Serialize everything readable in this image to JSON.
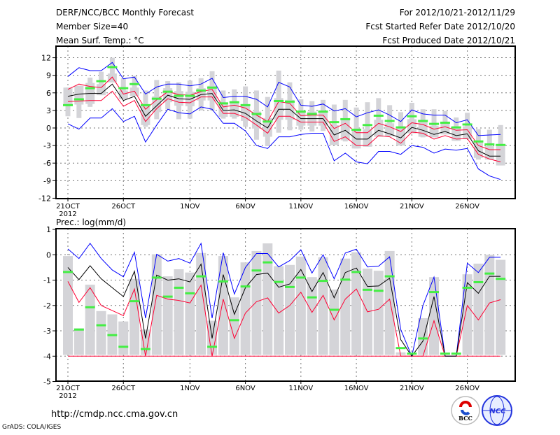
{
  "header": {
    "title": "DERF/NCC/BCC Monthly Forecast",
    "member_size": "Member Size=40",
    "variable": "Mean Surf. Temp.: °C",
    "period": "For 2012/10/21-2012/11/29",
    "start_date": "Fcst Started Refer Date 2012/10/20",
    "produced_date": "Fcst Produced Date 2012/10/21"
  },
  "footer": {
    "url": "http://cmdp.ncc.cma.gov.cn",
    "credit": "GrADS: COLA/IGES",
    "logo_bcc": "BCC",
    "logo_ncc": "NCC"
  },
  "colors": {
    "mean": "#000000",
    "spread": "#ff0033",
    "extreme": "#0000ff",
    "observed": "#44ee44",
    "members": "#d4d4d8"
  },
  "chart_data": [
    {
      "type": "line",
      "title": "Mean Surf. Temp.: °C",
      "ylim": [
        -12,
        14
      ],
      "yticks": [
        "12",
        "9",
        "6",
        "3",
        "0",
        "-3",
        "-6",
        "-9",
        "-12"
      ],
      "ytick_values": [
        12,
        9,
        6,
        3,
        0,
        -3,
        -6,
        -9,
        -12
      ],
      "xticks": [
        {
          "day": 0,
          "label": "21OCT",
          "sub": "2012"
        },
        {
          "day": 5,
          "label": "26OCT"
        },
        {
          "day": 11,
          "label": "1NOV"
        },
        {
          "day": 16,
          "label": "6NOV"
        },
        {
          "day": 21,
          "label": "11NOV"
        },
        {
          "day": 26,
          "label": "16NOV"
        },
        {
          "day": 31,
          "label": "21NOV"
        },
        {
          "day": 36,
          "label": "26NOV"
        }
      ],
      "grid": true,
      "x_days": 40,
      "series": {
        "mean": [
          5.4,
          5.8,
          5.9,
          5.9,
          7.5,
          4.7,
          5.4,
          2.0,
          3.8,
          5.6,
          5.0,
          4.9,
          5.7,
          5.9,
          3.0,
          3.1,
          2.5,
          1.2,
          0.0,
          3.2,
          3.2,
          1.6,
          1.6,
          1.6,
          -1.2,
          -0.4,
          -1.9,
          -1.9,
          -0.4,
          -1.0,
          -1.7,
          0.1,
          -0.4,
          -1.1,
          -0.6,
          -1.3,
          -1.0,
          -3.9,
          -4.8,
          -4.8
        ],
        "red_upper": [
          6.6,
          7.5,
          7.1,
          6.9,
          8.7,
          5.8,
          6.3,
          3.2,
          4.8,
          6.2,
          5.7,
          5.6,
          6.2,
          6.6,
          3.6,
          3.9,
          3.4,
          2.2,
          1.1,
          4.5,
          4.2,
          2.1,
          2.2,
          2.2,
          -0.1,
          0.8,
          -0.8,
          -0.8,
          0.8,
          0.2,
          -0.6,
          0.9,
          0.6,
          -0.2,
          0.2,
          -0.4,
          -0.3,
          -3.0,
          -3.7,
          -3.7
        ],
        "red_lower": [
          4.5,
          4.6,
          4.7,
          4.7,
          6.3,
          3.7,
          4.7,
          1.1,
          3.3,
          5.0,
          4.4,
          4.3,
          5.3,
          5.3,
          2.5,
          2.5,
          1.8,
          0.5,
          -0.9,
          2.0,
          2.0,
          1.0,
          1.0,
          1.0,
          -2.3,
          -1.5,
          -3.0,
          -3.0,
          -1.3,
          -1.5,
          -2.6,
          -0.7,
          -0.9,
          -1.9,
          -1.3,
          -1.9,
          -1.8,
          -4.5,
          -5.3,
          -5.8
        ],
        "blue_upper": [
          8.8,
          10.3,
          9.8,
          9.8,
          11.2,
          8.4,
          8.7,
          5.8,
          7.0,
          7.5,
          7.5,
          7.2,
          7.5,
          8.5,
          5.2,
          5.4,
          5.4,
          4.9,
          3.6,
          7.8,
          7.0,
          3.9,
          3.7,
          4.1,
          2.9,
          3.3,
          1.9,
          2.6,
          3.1,
          2.2,
          1.1,
          3.1,
          2.4,
          2.2,
          2.2,
          0.9,
          1.4,
          -1.3,
          -1.2,
          -1.1
        ],
        "blue_lower": [
          0.7,
          -0.2,
          1.7,
          1.7,
          3.3,
          1.1,
          2.0,
          -2.4,
          0.5,
          3.2,
          2.6,
          2.4,
          3.6,
          3.2,
          0.8,
          0.8,
          -0.5,
          -3.0,
          -3.5,
          -1.5,
          -1.5,
          -1.1,
          -0.9,
          -0.9,
          -5.6,
          -4.3,
          -5.8,
          -6.1,
          -4.0,
          -4.0,
          -4.5,
          -3.0,
          -3.3,
          -4.3,
          -3.6,
          -3.8,
          -3.5,
          -7.0,
          -8.2,
          -8.8
        ],
        "observed": [
          3.9,
          4.9,
          6.8,
          8.0,
          10.4,
          6.8,
          7.5,
          3.9,
          5.0,
          6.2,
          5.5,
          5.5,
          6.4,
          6.9,
          4.2,
          4.4,
          3.9,
          2.4,
          1.1,
          4.6,
          4.5,
          2.8,
          2.4,
          2.8,
          1.0,
          1.5,
          -0.3,
          0.5,
          2.1,
          1.2,
          0.1,
          2.0,
          1.2,
          0.7,
          0.9,
          0.1,
          0.6,
          -2.3,
          -2.8,
          -2.9
        ],
        "member_min": [
          2.0,
          1.7,
          3.6,
          5.6,
          7.8,
          4.9,
          5.5,
          0.2,
          1.5,
          3.2,
          1.5,
          1.6,
          3.0,
          3.0,
          1.6,
          1.6,
          0.2,
          -2.0,
          -3.1,
          -0.8,
          -0.4,
          -0.3,
          -0.6,
          -0.5,
          -2.9,
          -2.3,
          -3.5,
          -3.2,
          -1.5,
          -1.4,
          -3.0,
          -0.9,
          -1.6,
          -1.6,
          -1.1,
          -2.2,
          -1.9,
          -5.4,
          -5.4,
          -6.4
        ],
        "member_max": [
          6.9,
          7.2,
          8.6,
          9.6,
          12.0,
          8.5,
          8.9,
          6.4,
          8.2,
          8.0,
          7.8,
          8.1,
          8.5,
          9.7,
          6.4,
          6.6,
          7.1,
          6.4,
          5.3,
          9.8,
          7.8,
          4.9,
          4.6,
          4.8,
          4.0,
          4.8,
          3.5,
          4.4,
          5.1,
          3.9,
          2.7,
          4.3,
          3.2,
          3.2,
          2.9,
          1.8,
          2.6,
          -0.2,
          -0.3,
          0.5
        ]
      }
    },
    {
      "type": "line",
      "title": "Prec.: log(mm/d)",
      "ylim": [
        -5,
        1
      ],
      "yticks": [
        "1",
        "0",
        "-1",
        "-2",
        "-3",
        "-4",
        "-5"
      ],
      "ytick_values": [
        1,
        0,
        -1,
        -2,
        -3,
        -4,
        -5
      ],
      "xticks": [
        {
          "day": 0,
          "label": "21OCT",
          "sub": "2012"
        },
        {
          "day": 5,
          "label": "26OCT"
        },
        {
          "day": 11,
          "label": "1NOV"
        },
        {
          "day": 16,
          "label": "6NOV"
        },
        {
          "day": 21,
          "label": "11NOV"
        },
        {
          "day": 26,
          "label": "16NOV"
        },
        {
          "day": 31,
          "label": "21NOV"
        },
        {
          "day": 36,
          "label": "26NOV"
        }
      ],
      "grid": true,
      "x_days": 40,
      "lower_bound": -4,
      "member_floor": -3.95,
      "series": {
        "mean": [
          -0.5,
          -0.98,
          -0.43,
          -0.95,
          -1.3,
          -1.65,
          -0.65,
          -3.3,
          -0.8,
          -1.0,
          -0.95,
          -1.07,
          -0.37,
          -3.3,
          -0.78,
          -2.35,
          -1.3,
          -0.78,
          -0.72,
          -1.28,
          -1.15,
          -0.58,
          -1.45,
          -0.7,
          -1.7,
          -0.7,
          -0.52,
          -1.25,
          -1.23,
          -0.92,
          -3.35,
          -4.0,
          -3.4,
          -1.65,
          -4.0,
          -4.0,
          -1.1,
          -1.52,
          -0.85,
          -0.85
        ],
        "blue_upper": [
          0.23,
          -0.15,
          0.45,
          -0.15,
          -0.6,
          -0.87,
          0.1,
          -2.5,
          0.02,
          -0.25,
          -0.15,
          -0.33,
          0.45,
          -2.5,
          0.08,
          -1.55,
          -0.5,
          0.05,
          0.05,
          -0.48,
          -0.23,
          0.2,
          -0.72,
          0.0,
          -0.95,
          0.07,
          0.22,
          -0.48,
          -0.45,
          -0.08,
          -2.95,
          -4.0,
          -2.0,
          -0.88,
          -4.0,
          -4.0,
          -0.33,
          -0.7,
          -0.1,
          -0.1
        ],
        "red_upper": [
          -1.05,
          -1.88,
          -1.3,
          -2.0,
          -2.2,
          -2.4,
          -1.35,
          -4.0,
          -1.6,
          -1.75,
          -1.8,
          -1.9,
          -1.2,
          -4.0,
          -1.75,
          -3.3,
          -2.3,
          -1.85,
          -1.7,
          -2.3,
          -2.0,
          -1.48,
          -2.27,
          -1.6,
          -2.57,
          -1.75,
          -1.35,
          -2.25,
          -2.15,
          -1.75,
          -4.0,
          -4.0,
          -4.0,
          -2.6,
          -4.0,
          -4.0,
          -2.0,
          -2.57,
          -1.9,
          -1.77
        ],
        "observed": [
          -0.68,
          -2.95,
          -2.07,
          -2.78,
          -3.17,
          -3.63,
          -1.83,
          -3.72,
          -0.9,
          -1.65,
          -1.3,
          -1.52,
          -0.85,
          -3.63,
          -1.05,
          -2.58,
          -1.25,
          -0.62,
          -0.3,
          -1.07,
          -1.27,
          -0.9,
          -1.68,
          -1.03,
          -2.17,
          -0.98,
          -0.68,
          -1.38,
          -1.42,
          -0.85,
          -3.68,
          -3.9,
          -3.3,
          -1.47,
          -3.9,
          -3.9,
          -1.3,
          -1.08,
          -0.74,
          -0.95
        ],
        "member_max": [
          -0.05,
          -2.9,
          -1.18,
          -2.22,
          -2.35,
          -2.63,
          -0.95,
          -2.95,
          0.02,
          -0.85,
          -0.57,
          -0.7,
          0.07,
          -2.6,
          -0.05,
          -1.68,
          -0.3,
          0.15,
          0.45,
          -0.45,
          -0.4,
          -0.07,
          -0.88,
          -0.1,
          -1.37,
          -0.15,
          0.1,
          -0.55,
          -0.63,
          0.15,
          -3.85,
          -3.95,
          -2.5,
          -0.88,
          -3.95,
          -3.95,
          -0.77,
          -0.35,
          0.0,
          -0.2
        ]
      }
    }
  ]
}
